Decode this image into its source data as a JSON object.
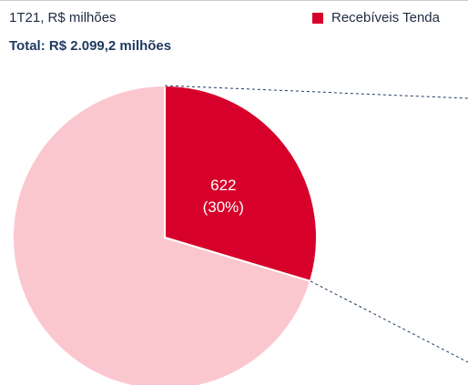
{
  "header": {
    "subtitle": "1T21, R$ milhões",
    "total_label": "Total: R$ 2.099,2 milhões"
  },
  "legend": {
    "label": "Recebíveis Tenda",
    "color": "#d7002a"
  },
  "chart_data": {
    "type": "pie",
    "title": "",
    "total": 2099.2,
    "slices": [
      {
        "label": "Recebíveis Tenda",
        "value": 622,
        "percent": 30,
        "value_text": "622",
        "percent_text": "(30%)",
        "color": "#d7002a"
      },
      {
        "label": "",
        "value": 1477.2,
        "percent": 70,
        "value_text": "",
        "percent_text": "",
        "color": "#fbc7cf"
      }
    ],
    "start_angle_deg": 0,
    "exploded_detail": true
  }
}
